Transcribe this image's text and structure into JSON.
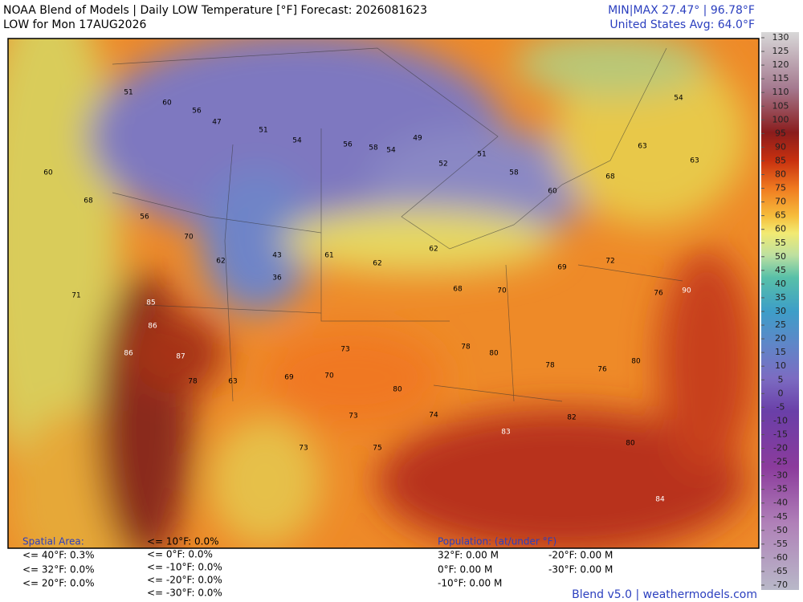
{
  "header": {
    "title": "NOAA Blend of Models | Daily LOW Temperature [°F] Forecast: 2026081623",
    "subtitle": "LOW for Mon 17AUG2026",
    "minmax": "MIN|MAX 27.47°  |  96.78°F",
    "avg": "United States Avg: 64.0°F"
  },
  "colorbar": {
    "ticks": [
      130,
      125,
      120,
      115,
      110,
      105,
      100,
      95,
      90,
      85,
      80,
      75,
      70,
      65,
      60,
      55,
      50,
      45,
      40,
      35,
      30,
      25,
      20,
      15,
      10,
      5,
      0,
      -5,
      -10,
      -15,
      -20,
      -25,
      -30,
      -35,
      -40,
      -45,
      -50,
      -55,
      -60,
      -65,
      -70
    ]
  },
  "map": {
    "stations": [
      51,
      60,
      56,
      47,
      51,
      54,
      56,
      58,
      54,
      49,
      52,
      51,
      58,
      60,
      68,
      63,
      54,
      63,
      60,
      68,
      56,
      70,
      62,
      43,
      36,
      61,
      62,
      62,
      68,
      70,
      69,
      72,
      76,
      90,
      71,
      85,
      86,
      86,
      87,
      78,
      63,
      69,
      70,
      73,
      80,
      74,
      80,
      78,
      76,
      80,
      82,
      83,
      80,
      84,
      75,
      73,
      73,
      78
    ]
  },
  "spatial_area": {
    "title": "Spatial Area:",
    "col1": [
      "<= 40°F: 0.3%",
      "<= 32°F: 0.0%",
      "<= 20°F: 0.0%"
    ],
    "col2": [
      "<= 10°F: 0.0%",
      "<= 0°F: 0.0%",
      "<= -10°F: 0.0%",
      "<= -20°F: 0.0%",
      "<= -30°F: 0.0%"
    ]
  },
  "population": {
    "title": "Population: (at/under °F)",
    "col1": [
      "32°F: 0.00 M",
      "0°F: 0.00 M",
      "-10°F: 0.00 M"
    ],
    "col2": [
      "-20°F: 0.00 M",
      "-30°F: 0.00 M"
    ]
  },
  "footer": "Blend v5.0 | weathermodels.com"
}
